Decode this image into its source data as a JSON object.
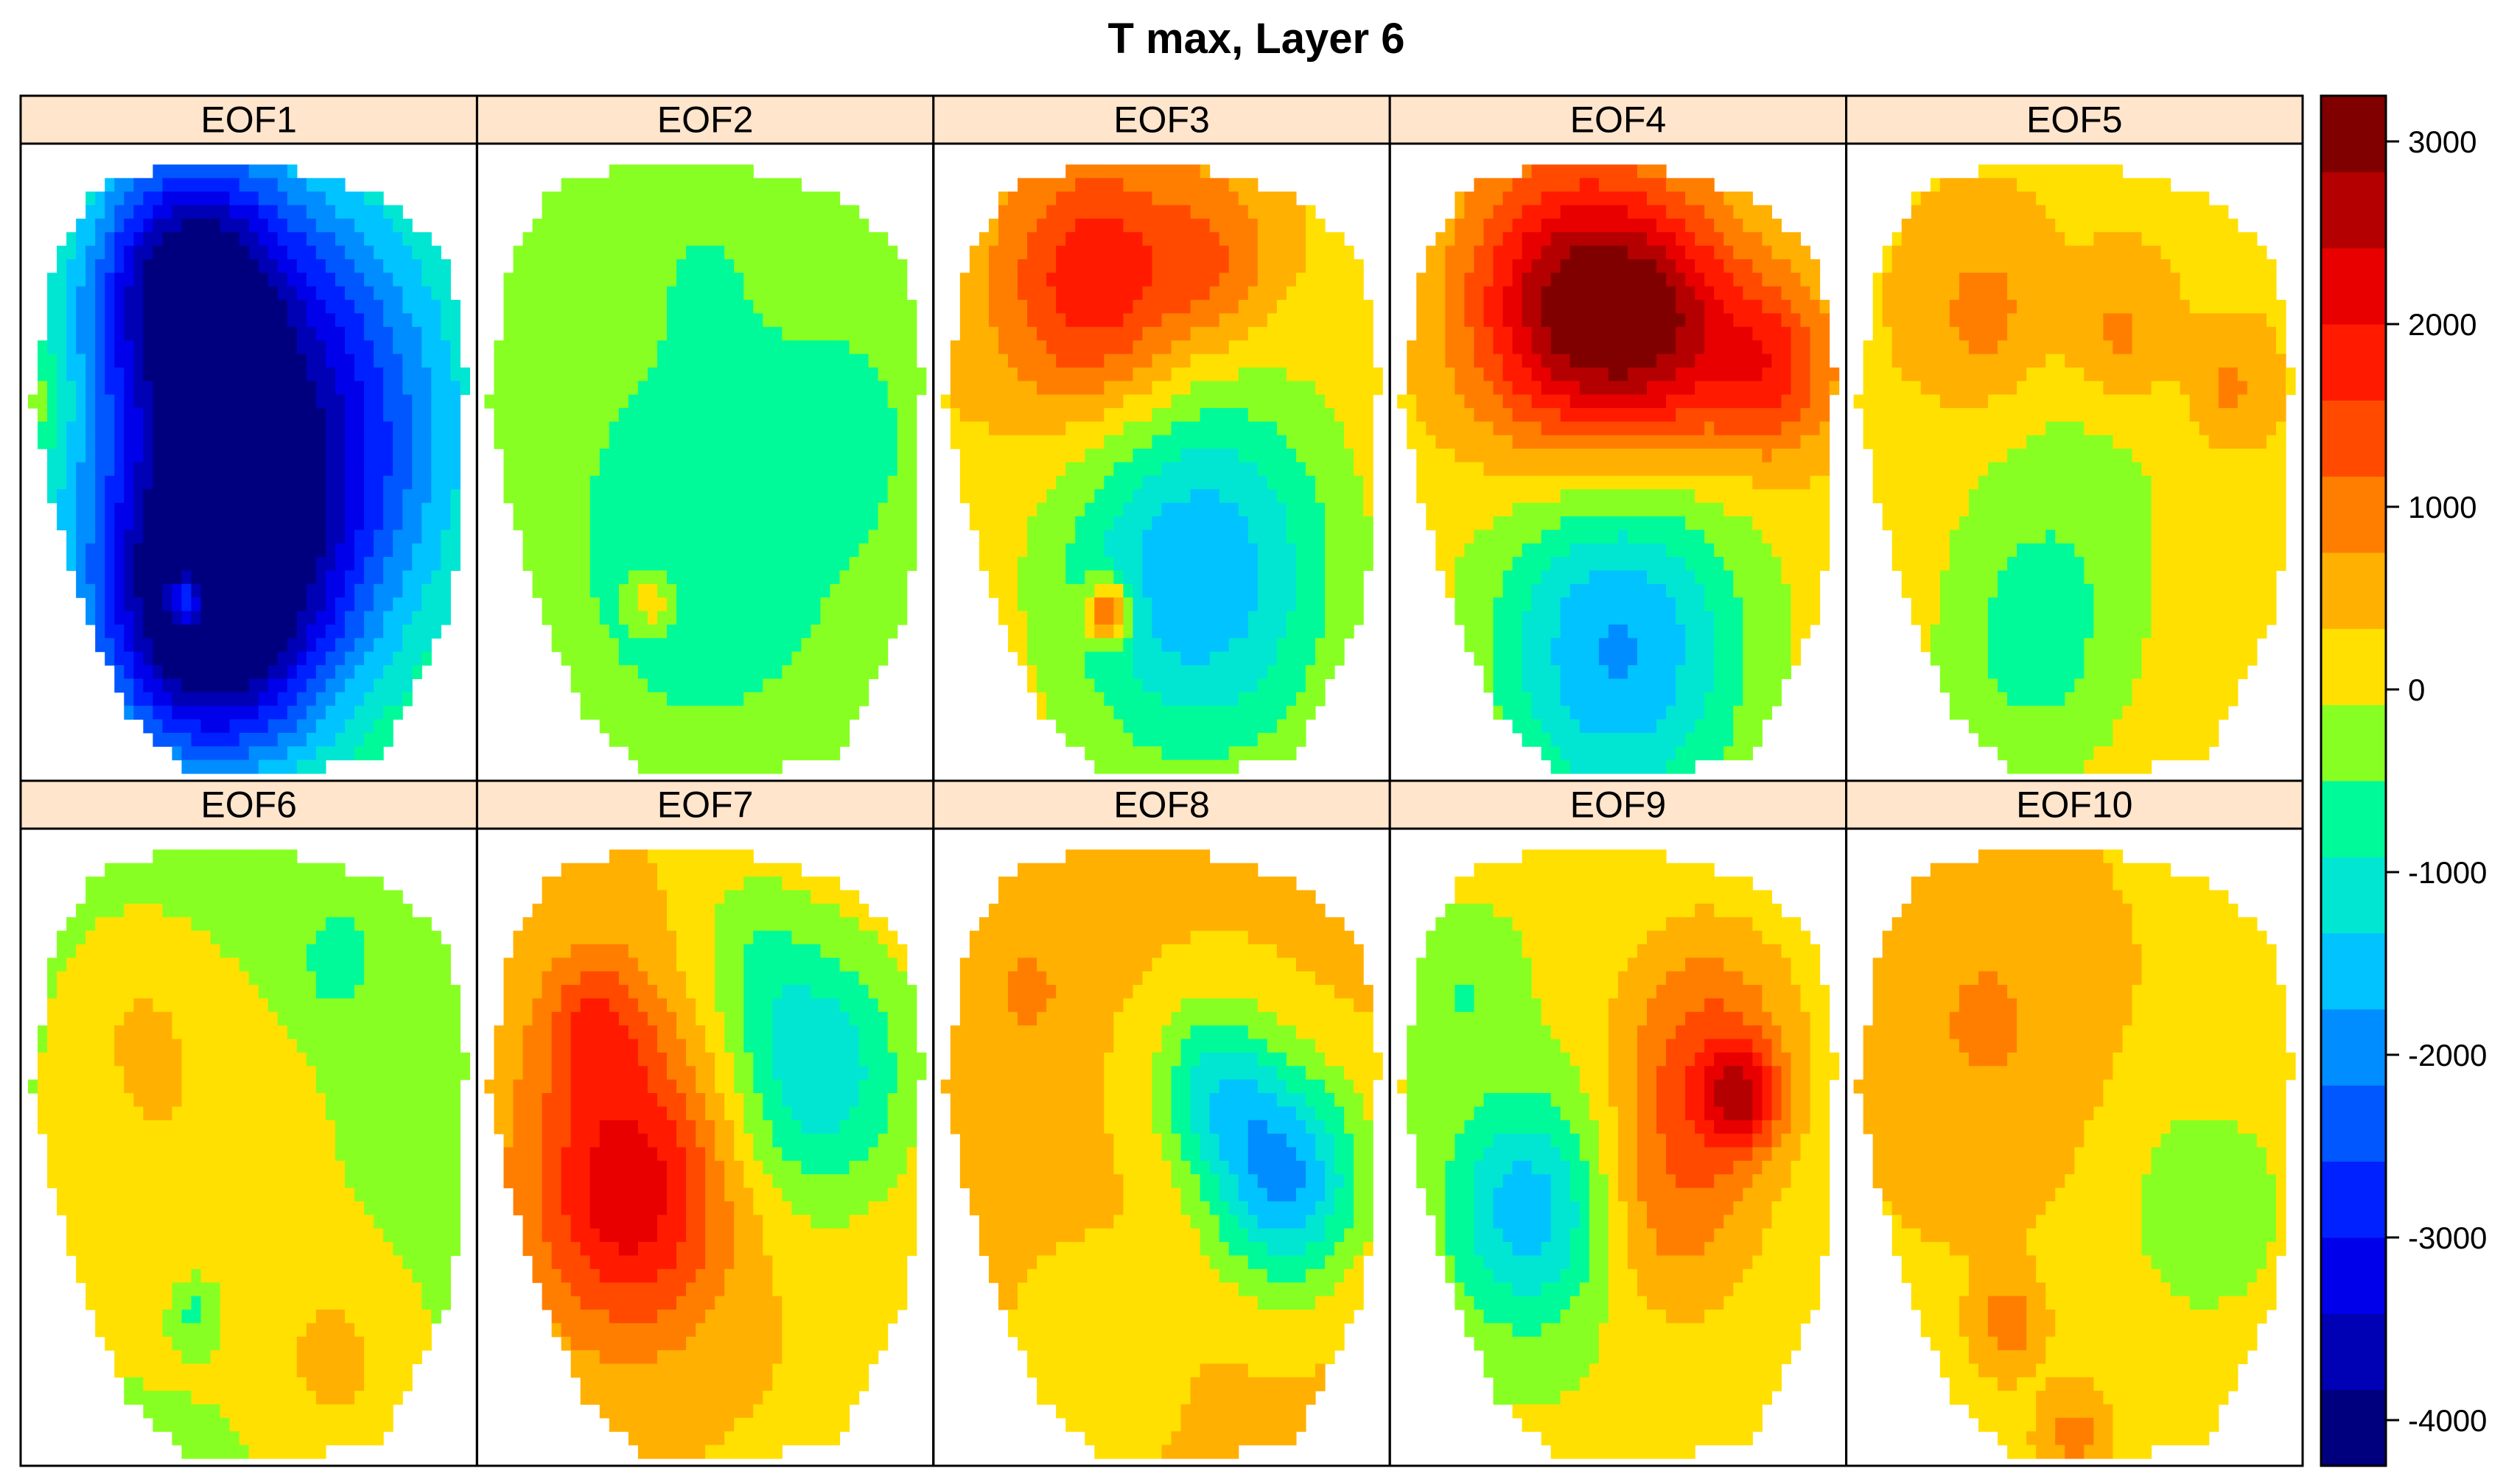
{
  "chart_data": {
    "type": "heatmap",
    "title": "T max, Layer 6",
    "panels": [
      "EOF1",
      "EOF2",
      "EOF3",
      "EOF4",
      "EOF5",
      "EOF6",
      "EOF7",
      "EOF8",
      "EOF9",
      "EOF10"
    ],
    "layout": {
      "columns": 5,
      "rows": 2
    },
    "colorbar": {
      "range": [
        -4250,
        3250
      ],
      "ticks": [
        3000,
        2000,
        1000,
        0,
        -1000,
        -2000,
        -3000,
        -4000
      ],
      "tick_labels": [
        "3000",
        "2000",
        "1000",
        "0",
        "-1000",
        "-2000",
        "-3000",
        "-4000"
      ],
      "colors": [
        "#00007f",
        "#0000b5",
        "#0000eb",
        "#0021ff",
        "#0057ff",
        "#008dff",
        "#00c3ff",
        "#00e6d2",
        "#00fa9a",
        "#88ff22",
        "#ffe000",
        "#ffb000",
        "#ff7e00",
        "#ff4a00",
        "#ff1a00",
        "#e80000",
        "#b40000",
        "#800000"
      ]
    },
    "panel_fields": [
      {
        "name": "EOF1",
        "base": 100,
        "blobs": [
          {
            "x": 0.55,
            "y": 0.45,
            "s": 0.3,
            "v": -3900
          },
          {
            "x": 0.4,
            "y": 0.75,
            "s": 0.18,
            "v": -3400
          },
          {
            "x": 0.35,
            "y": 0.2,
            "s": 0.15,
            "v": -2600
          },
          {
            "x": 0.36,
            "y": 0.72,
            "s": 0.035,
            "v": 2600
          },
          {
            "x": 0.02,
            "y": 0.4,
            "s": 0.06,
            "v": 500
          }
        ]
      },
      {
        "name": "EOF2",
        "base": -150,
        "blobs": [
          {
            "x": 0.5,
            "y": 0.62,
            "s": 0.22,
            "v": -750
          },
          {
            "x": 0.8,
            "y": 0.45,
            "s": 0.12,
            "v": -500
          },
          {
            "x": 0.38,
            "y": 0.72,
            "s": 0.035,
            "v": 900
          },
          {
            "x": 0.5,
            "y": 0.2,
            "s": 0.1,
            "v": -300
          }
        ]
      },
      {
        "name": "EOF3",
        "base": 300,
        "blobs": [
          {
            "x": 0.35,
            "y": 0.22,
            "s": 0.15,
            "v": 1700
          },
          {
            "x": 0.62,
            "y": 0.18,
            "s": 0.1,
            "v": 800
          },
          {
            "x": 0.58,
            "y": 0.68,
            "s": 0.22,
            "v": -2000
          },
          {
            "x": 0.38,
            "y": 0.74,
            "s": 0.035,
            "v": 2100
          }
        ]
      },
      {
        "name": "EOF4",
        "base": 200,
        "blobs": [
          {
            "x": 0.38,
            "y": 0.25,
            "s": 0.16,
            "v": 2500
          },
          {
            "x": 0.6,
            "y": 0.28,
            "s": 0.14,
            "v": 2000
          },
          {
            "x": 0.85,
            "y": 0.35,
            "s": 0.1,
            "v": 1400
          },
          {
            "x": 0.5,
            "y": 0.8,
            "s": 0.2,
            "v": -2000
          }
        ]
      },
      {
        "name": "EOF5",
        "base": 300,
        "blobs": [
          {
            "x": 0.3,
            "y": 0.27,
            "s": 0.1,
            "v": 700
          },
          {
            "x": 0.6,
            "y": 0.3,
            "s": 0.08,
            "v": 700
          },
          {
            "x": 0.85,
            "y": 0.38,
            "s": 0.06,
            "v": 600
          },
          {
            "x": 0.4,
            "y": 0.82,
            "s": 0.16,
            "v": -800
          },
          {
            "x": 0.5,
            "y": 0.55,
            "s": 0.2,
            "v": -500
          }
        ]
      },
      {
        "name": "EOF6",
        "base": -200,
        "blobs": [
          {
            "x": 0.35,
            "y": 0.55,
            "s": 0.2,
            "v": 500
          },
          {
            "x": 0.25,
            "y": 0.3,
            "s": 0.1,
            "v": 400
          },
          {
            "x": 0.7,
            "y": 0.85,
            "s": 0.12,
            "v": 600
          },
          {
            "x": 0.7,
            "y": 0.2,
            "s": 0.06,
            "v": -600
          },
          {
            "x": 0.38,
            "y": 0.76,
            "s": 0.04,
            "v": -700
          }
        ]
      },
      {
        "name": "EOF7",
        "base": 300,
        "blobs": [
          {
            "x": 0.33,
            "y": 0.6,
            "s": 0.15,
            "v": 1500
          },
          {
            "x": 0.25,
            "y": 0.3,
            "s": 0.08,
            "v": 900
          },
          {
            "x": 0.32,
            "y": 0.45,
            "s": 0.18,
            "v": 700
          },
          {
            "x": 0.75,
            "y": 0.38,
            "s": 0.15,
            "v": -1600
          },
          {
            "x": 0.6,
            "y": 0.18,
            "s": 0.1,
            "v": -500
          }
        ]
      },
      {
        "name": "EOF8",
        "base": 400,
        "blobs": [
          {
            "x": 0.78,
            "y": 0.55,
            "s": 0.12,
            "v": -2200
          },
          {
            "x": 0.62,
            "y": 0.4,
            "s": 0.1,
            "v": -1300
          },
          {
            "x": 0.2,
            "y": 0.25,
            "s": 0.06,
            "v": 500
          },
          {
            "x": 0.35,
            "y": 0.85,
            "s": 0.12,
            "v": -300
          }
        ]
      },
      {
        "name": "EOF9",
        "base": 0,
        "blobs": [
          {
            "x": 0.3,
            "y": 0.6,
            "s": 0.13,
            "v": -1600
          },
          {
            "x": 0.7,
            "y": 0.35,
            "s": 0.14,
            "v": 1300
          },
          {
            "x": 0.78,
            "y": 0.42,
            "s": 0.06,
            "v": 1600
          },
          {
            "x": 0.62,
            "y": 0.6,
            "s": 0.13,
            "v": 900
          },
          {
            "x": 0.15,
            "y": 0.25,
            "s": 0.08,
            "v": -500
          }
        ]
      },
      {
        "name": "EOF10",
        "base": 300,
        "blobs": [
          {
            "x": 0.3,
            "y": 0.3,
            "s": 0.16,
            "v": 500
          },
          {
            "x": 0.8,
            "y": 0.6,
            "s": 0.14,
            "v": -700
          },
          {
            "x": 0.35,
            "y": 0.78,
            "s": 0.04,
            "v": 900
          },
          {
            "x": 0.5,
            "y": 0.96,
            "s": 0.04,
            "v": 700
          }
        ]
      }
    ]
  }
}
